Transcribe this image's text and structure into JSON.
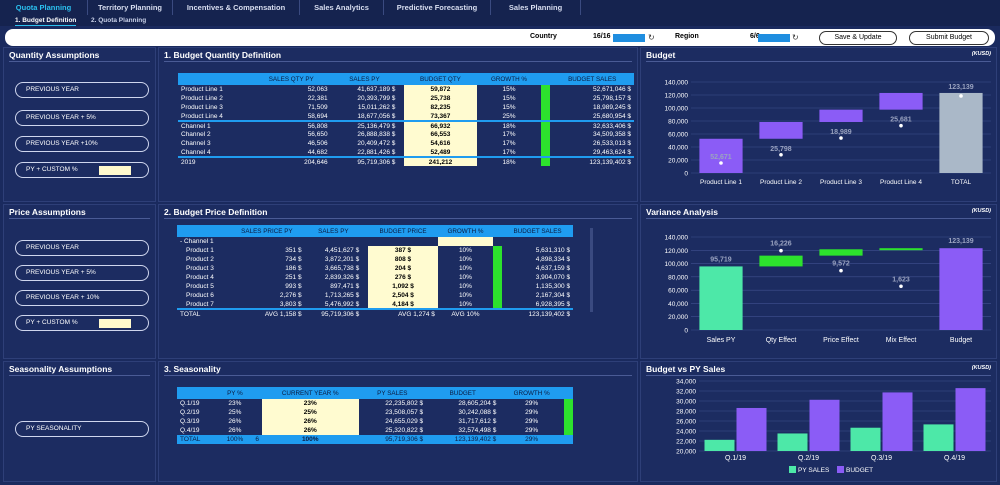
{
  "nav": {
    "tabs": [
      "Quota Planning",
      "Territory Planning",
      "Incentives & Compensation",
      "Sales Analytics",
      "Predictive Forecasting",
      "Sales Planning"
    ],
    "subtabs": [
      "1. Budget Definition",
      "2. Quota Planning"
    ]
  },
  "filters": {
    "country_label": "Country",
    "country_value": "16/16",
    "region_label": "Region",
    "region_value": "6/6",
    "save_label": "Save & Update",
    "submit_label": "Submit Budget"
  },
  "quantity_assumptions": {
    "title": "Quantity Assumptions",
    "options": [
      "PREVIOUS YEAR",
      "PREVIOUS YEAR + 5%",
      "PREVIOUS YEAR +10%",
      "PY + CUSTOM %"
    ]
  },
  "price_assumptions": {
    "title": "Price Assumptions",
    "options": [
      "PREVIOUS YEAR",
      "PREVIOUS YEAR + 5%",
      "PREVIOUS YEAR + 10%",
      "PY + CUSTOM %"
    ]
  },
  "seasonality_assumptions": {
    "title": "Seasonality Assumptions",
    "options": [
      "PY SEASONALITY"
    ]
  },
  "budget_quantity": {
    "title": "1. Budget Quantity Definition",
    "headers": [
      "",
      "SALES QTY PY",
      "SALES PY",
      "BUDGET QTY",
      "GROWTH %",
      "BUDGET SALES"
    ],
    "products": [
      [
        "Product Line 1",
        "52,063",
        "41,637,189 $",
        "59,872",
        "15%",
        "52,671,046 $"
      ],
      [
        "Product Line 2",
        "22,381",
        "20,393,799 $",
        "25,738",
        "15%",
        "25,798,157 $"
      ],
      [
        "Product Line 3",
        "71,509",
        "15,011,262 $",
        "82,235",
        "15%",
        "18,989,245 $"
      ],
      [
        "Product Line 4",
        "58,694",
        "18,677,056 $",
        "73,367",
        "25%",
        "25,680,954 $"
      ]
    ],
    "channels": [
      [
        "Channel 1",
        "56,808",
        "25,136,479 $",
        "66,932",
        "18%",
        "32,633,406 $"
      ],
      [
        "Channel 2",
        "56,650",
        "26,888,838 $",
        "66,553",
        "17%",
        "34,509,358 $"
      ],
      [
        "Channel 3",
        "46,506",
        "20,409,472 $",
        "54,616",
        "17%",
        "26,533,013 $"
      ],
      [
        "Channel 4",
        "44,682",
        "22,881,426 $",
        "52,489",
        "17%",
        "29,463,624 $"
      ]
    ],
    "total": [
      "2019",
      "204,646",
      "95,719,306 $",
      "241,212",
      "18%",
      "123,139,402 $"
    ]
  },
  "budget_price": {
    "title": "2. Budget Price Definition",
    "headers": [
      "",
      "SALES PRICE PY",
      "SALES PY",
      "BUDGET PRICE",
      "GROWTH %",
      "BUDGET SALES"
    ],
    "group": "Channel 1",
    "rows": [
      [
        "Product 1",
        "351 $",
        "4,451,627 $",
        "387 $",
        "10%",
        "5,631,310 $"
      ],
      [
        "Product 2",
        "734 $",
        "3,872,201 $",
        "808 $",
        "10%",
        "4,898,334 $"
      ],
      [
        "Product 3",
        "186 $",
        "3,665,738 $",
        "204 $",
        "10%",
        "4,637,159 $"
      ],
      [
        "Product 4",
        "251 $",
        "2,839,326 $",
        "276 $",
        "10%",
        "3,904,070 $"
      ],
      [
        "Product 5",
        "993 $",
        "897,471 $",
        "1,092 $",
        "10%",
        "1,135,300 $"
      ],
      [
        "Product 6",
        "2,276 $",
        "1,713,265 $",
        "2,504 $",
        "10%",
        "2,167,304 $"
      ],
      [
        "Product 7",
        "3,803 $",
        "5,476,992 $",
        "4,184 $",
        "10%",
        "6,928,395 $"
      ]
    ],
    "total": [
      "TOTAL",
      "AVG 1,158 $",
      "95,719,306 $",
      "AVG 1,274 $",
      "AVG 10%",
      "123,139,402 $"
    ]
  },
  "seasonality": {
    "title": "3. Seasonality",
    "headers": [
      "",
      "PY %",
      "CURRENT YEAR %",
      "PY SALES",
      "BUDGET",
      "GROWTH %"
    ],
    "rows": [
      [
        "Q.1/19",
        "23%",
        "23%",
        "22,235,802 $",
        "28,605,204 $",
        "29%"
      ],
      [
        "Q.2/19",
        "25%",
        "25%",
        "23,508,057 $",
        "30,242,088 $",
        "29%"
      ],
      [
        "Q.3/19",
        "26%",
        "26%",
        "24,655,029 $",
        "31,717,612 $",
        "29%"
      ],
      [
        "Q.4/19",
        "26%",
        "26%",
        "25,320,822 $",
        "32,574,498 $",
        "29%"
      ]
    ],
    "total": [
      "TOTAL",
      "100%",
      "100%",
      "95,719,306 $",
      "123,139,402 $",
      "29%"
    ],
    "total_marker": "6"
  },
  "chart_data": [
    {
      "type": "bar",
      "title": "Budget",
      "unit": "(KUSD)",
      "categories": [
        "Product Line 1",
        "Product Line 2",
        "Product Line 3",
        "Product Line 4",
        "TOTAL"
      ],
      "values": [
        52671,
        25798,
        18989,
        25681,
        123139
      ],
      "labels": [
        "52,671",
        "25,798",
        "18,989",
        "25,681",
        "123,139"
      ],
      "ylim": [
        0,
        140000
      ],
      "yticks": [
        "0",
        "20,000",
        "40,000",
        "60,000",
        "80,000",
        "100,000",
        "120,000",
        "140,000"
      ]
    },
    {
      "type": "bar",
      "title": "Variance Analysis",
      "unit": "(KUSD)",
      "categories": [
        "Sales PY",
        "Qty Effect",
        "Price Effect",
        "Mix Effect",
        "Budget"
      ],
      "values": [
        95719,
        16226,
        9572,
        1623,
        123139
      ],
      "labels": [
        "95,719",
        "16,226",
        "9,572",
        "1,623",
        "123,139"
      ],
      "ylim": [
        0,
        140000
      ],
      "yticks": [
        "0",
        "20,000",
        "40,000",
        "60,000",
        "80,000",
        "100,000",
        "120,000",
        "140,000"
      ]
    },
    {
      "type": "bar",
      "title": "Budget vs PY Sales",
      "unit": "(KUSD)",
      "categories": [
        "Q.1/19",
        "Q.2/19",
        "Q.3/19",
        "Q.4/19"
      ],
      "series": [
        {
          "name": "PY SALES",
          "values": [
            22236,
            23508,
            24655,
            25321
          ]
        },
        {
          "name": "BUDGET",
          "values": [
            28605,
            30242,
            31718,
            32574
          ]
        }
      ],
      "ylim": [
        20000,
        34000
      ],
      "yticks": [
        "20,000",
        "22,000",
        "24,000",
        "26,000",
        "28,000",
        "30,000",
        "32,000",
        "34,000"
      ],
      "legend": "bottom"
    }
  ],
  "colors": {
    "purple": "#8b5cf6",
    "grey": "#aab8c8",
    "mint": "#4de8a8",
    "green": "#2de22d",
    "blue": "#1f9cf0"
  }
}
